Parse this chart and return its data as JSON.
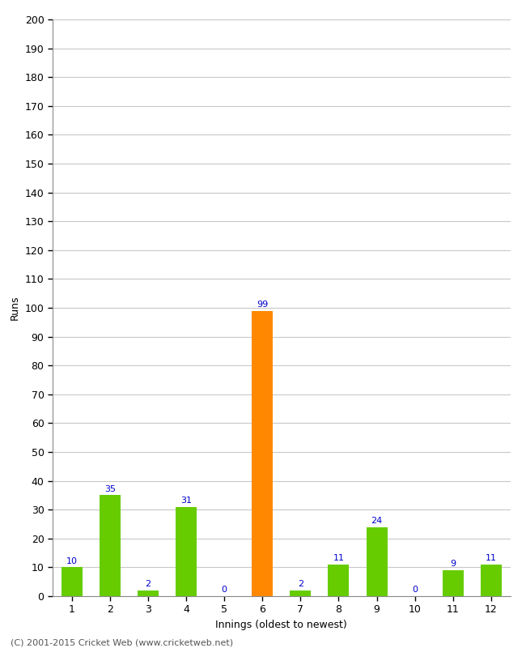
{
  "title": "",
  "xlabel": "Innings (oldest to newest)",
  "ylabel": "Runs",
  "categories": [
    "1",
    "2",
    "3",
    "4",
    "5",
    "6",
    "7",
    "8",
    "9",
    "10",
    "11",
    "12"
  ],
  "values": [
    10,
    35,
    2,
    31,
    0,
    99,
    2,
    11,
    24,
    0,
    9,
    11
  ],
  "bar_colors": [
    "#66cc00",
    "#66cc00",
    "#66cc00",
    "#66cc00",
    "#66cc00",
    "#ff8800",
    "#66cc00",
    "#66cc00",
    "#66cc00",
    "#66cc00",
    "#66cc00",
    "#66cc00"
  ],
  "label_color": "#0000cc",
  "ylim": [
    0,
    200
  ],
  "yticks": [
    0,
    10,
    20,
    30,
    40,
    50,
    60,
    70,
    80,
    90,
    100,
    110,
    120,
    130,
    140,
    150,
    160,
    170,
    180,
    190,
    200
  ],
  "background_color": "#ffffff",
  "grid_color": "#c8c8c8",
  "footer": "(C) 2001-2015 Cricket Web (www.cricketweb.net)",
  "label_fontsize": 8,
  "axis_fontsize": 9,
  "footer_fontsize": 8,
  "bar_width": 0.55
}
